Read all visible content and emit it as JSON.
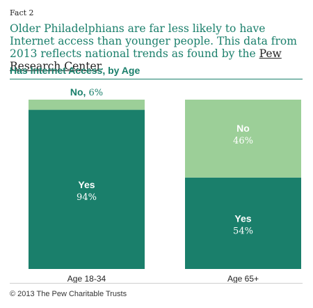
{
  "fact_label": "Fact 2",
  "headline": {
    "text": "Older Philadelphians are far less likely to have Internet access than younger people. This data from 2013 reflects national trends as found by the",
    "link": "Pew Research Center",
    "end": "."
  },
  "footer": "© 2013 The Pew Charitable Trusts",
  "colors": {
    "yes": "#1a7f6b",
    "no": "#9ccf98",
    "accent": "#1a7f6b"
  },
  "chart_data": {
    "type": "bar",
    "stacked": true,
    "title": "Has Internet Access, by Age",
    "categories": [
      "Age 18-34",
      "Age 65+"
    ],
    "series": [
      {
        "name": "Yes",
        "values": [
          94,
          54
        ]
      },
      {
        "name": "No",
        "values": [
          6,
          46
        ]
      }
    ],
    "value_labels": {
      "Yes": [
        "94%",
        "54%"
      ],
      "No": [
        "6%",
        "46%"
      ]
    },
    "ylim": [
      0,
      100
    ],
    "grid": false
  }
}
